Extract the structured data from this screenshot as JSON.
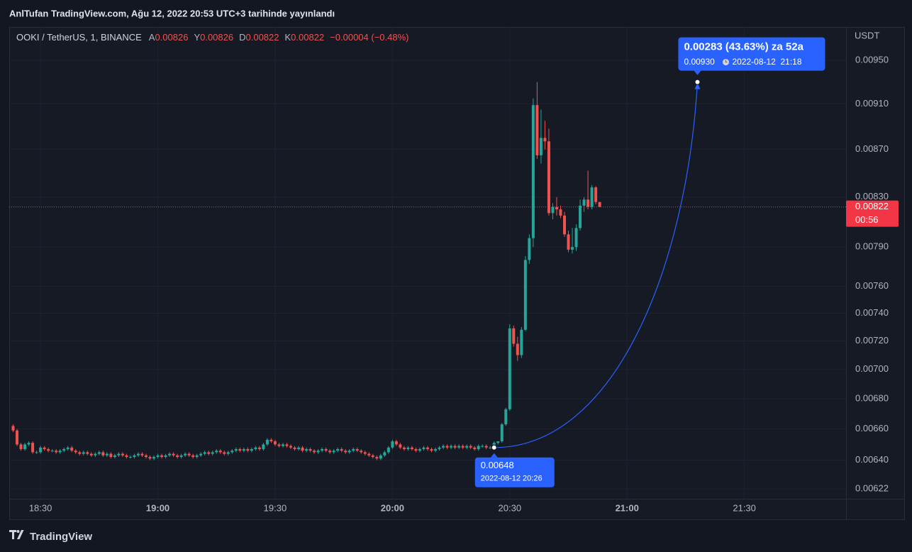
{
  "header": {
    "title": "AnlTufan TradingView.com, Ağu 12, 2022 20:53 UTC+3 tarihinde yayınlandı"
  },
  "chart_data": {
    "type": "candlestick",
    "symbol": "OOKI / TetherUS, 1, BINANCE",
    "ohlc_legend": [
      {
        "key": "A",
        "value": "0.00826"
      },
      {
        "key": "Y",
        "value": "0.00826"
      },
      {
        "key": "D",
        "value": "0.00822"
      },
      {
        "key": "K",
        "value": "0.00822"
      }
    ],
    "change": "−0.00004 (−0.48%)",
    "currency": "USDT",
    "up_color": "#26a69a",
    "down_color": "#ef5350",
    "log": true,
    "grid": true,
    "ylim": [
      0.00616,
      0.00982
    ],
    "yticks": [
      {
        "value": 0.0095,
        "label": "0.00950"
      },
      {
        "value": 0.0091,
        "label": "0.00910"
      },
      {
        "value": 0.0087,
        "label": "0.00870"
      },
      {
        "value": 0.0083,
        "label": "0.00830"
      },
      {
        "value": 0.0079,
        "label": "0.00790"
      },
      {
        "value": 0.0076,
        "label": "0.00760"
      },
      {
        "value": 0.0074,
        "label": "0.00740"
      },
      {
        "value": 0.0072,
        "label": "0.00720"
      },
      {
        "value": 0.007,
        "label": "0.00700"
      },
      {
        "value": 0.0068,
        "label": "0.00680"
      },
      {
        "value": 0.0066,
        "label": "0.00660"
      },
      {
        "value": 0.0064,
        "label": "0.00640"
      },
      {
        "value": 0.00622,
        "label": "0.00622"
      }
    ],
    "xlim": [
      "18:22",
      "21:56"
    ],
    "xticks": [
      "18:30",
      "19:00",
      "19:30",
      "20:00",
      "20:30",
      "21:00",
      "21:30"
    ],
    "x": [
      "18:23",
      "18:24",
      "18:25",
      "18:26",
      "18:27",
      "18:28",
      "18:29",
      "18:30",
      "18:31",
      "18:32",
      "18:33",
      "18:34",
      "18:35",
      "18:36",
      "18:37",
      "18:38",
      "18:39",
      "18:40",
      "18:41",
      "18:42",
      "18:43",
      "18:44",
      "18:45",
      "18:46",
      "18:47",
      "18:48",
      "18:49",
      "18:50",
      "18:51",
      "18:52",
      "18:53",
      "18:54",
      "18:55",
      "18:56",
      "18:57",
      "18:58",
      "18:59",
      "19:00",
      "19:01",
      "19:02",
      "19:03",
      "19:04",
      "19:05",
      "19:06",
      "19:07",
      "19:08",
      "19:09",
      "19:10",
      "19:11",
      "19:12",
      "19:13",
      "19:14",
      "19:15",
      "19:16",
      "19:17",
      "19:18",
      "19:19",
      "19:20",
      "19:21",
      "19:22",
      "19:23",
      "19:24",
      "19:25",
      "19:26",
      "19:27",
      "19:28",
      "19:29",
      "19:30",
      "19:31",
      "19:32",
      "19:33",
      "19:34",
      "19:35",
      "19:36",
      "19:37",
      "19:38",
      "19:39",
      "19:40",
      "19:41",
      "19:42",
      "19:43",
      "19:44",
      "19:45",
      "19:46",
      "19:47",
      "19:48",
      "19:49",
      "19:50",
      "19:51",
      "19:52",
      "19:53",
      "19:54",
      "19:55",
      "19:56",
      "19:57",
      "19:58",
      "19:59",
      "20:00",
      "20:01",
      "20:02",
      "20:03",
      "20:04",
      "20:05",
      "20:06",
      "20:07",
      "20:08",
      "20:09",
      "20:10",
      "20:11",
      "20:12",
      "20:13",
      "20:14",
      "20:15",
      "20:16",
      "20:17",
      "20:18",
      "20:19",
      "20:20",
      "20:21",
      "20:22",
      "20:23",
      "20:24",
      "20:25",
      "20:26",
      "20:27",
      "20:28",
      "20:29",
      "20:30",
      "20:31",
      "20:32",
      "20:33",
      "20:34",
      "20:35",
      "20:36",
      "20:37",
      "20:38",
      "20:39",
      "20:40",
      "20:41",
      "20:42",
      "20:43",
      "20:44",
      "20:45",
      "20:46",
      "20:47",
      "20:48",
      "20:49",
      "20:50",
      "20:51",
      "20:52",
      "20:53"
    ],
    "open": [
      0.00662,
      0.00659,
      0.0065,
      0.00647,
      0.0065,
      0.00651,
      0.00645,
      0.00645,
      0.00648,
      0.00647,
      0.00646,
      0.00646,
      0.00645,
      0.00646,
      0.00647,
      0.00648,
      0.00646,
      0.00645,
      0.00644,
      0.00645,
      0.00644,
      0.00643,
      0.00644,
      0.00645,
      0.00643,
      0.00644,
      0.00642,
      0.00643,
      0.00644,
      0.00643,
      0.00642,
      0.00642,
      0.00643,
      0.00644,
      0.00643,
      0.00642,
      0.00641,
      0.00642,
      0.00643,
      0.00642,
      0.00643,
      0.00644,
      0.00643,
      0.00642,
      0.00643,
      0.00644,
      0.00643,
      0.00642,
      0.00643,
      0.00644,
      0.00645,
      0.00644,
      0.00645,
      0.00646,
      0.00645,
      0.00644,
      0.00645,
      0.00646,
      0.00647,
      0.00646,
      0.00647,
      0.00646,
      0.00647,
      0.00648,
      0.00647,
      0.0065,
      0.00653,
      0.00652,
      0.0065,
      0.00649,
      0.0065,
      0.00649,
      0.00648,
      0.00647,
      0.00648,
      0.00646,
      0.00647,
      0.00646,
      0.00645,
      0.00646,
      0.00647,
      0.00646,
      0.00645,
      0.00646,
      0.00647,
      0.00646,
      0.00645,
      0.00646,
      0.00647,
      0.00646,
      0.00645,
      0.00644,
      0.00643,
      0.00642,
      0.00641,
      0.00643,
      0.00645,
      0.00648,
      0.00652,
      0.0065,
      0.00648,
      0.00647,
      0.00648,
      0.00647,
      0.00646,
      0.00647,
      0.00648,
      0.00647,
      0.00646,
      0.00647,
      0.00648,
      0.00649,
      0.00648,
      0.00649,
      0.00648,
      0.00649,
      0.00648,
      0.00649,
      0.00648,
      0.00647,
      0.00649,
      0.00649,
      0.00648,
      0.00648,
      0.00651,
      0.00652,
      0.00663,
      0.00673,
      0.00729,
      0.00718,
      0.0071,
      0.00728,
      0.0078,
      0.00797,
      0.00909,
      0.00865,
      0.0088,
      0.00877,
      0.00817,
      0.00822,
      0.0082,
      0.00815,
      0.008,
      0.00788,
      0.0079,
      0.00805,
      0.00823,
      0.00828,
      0.00822,
      0.00838,
      0.00826
    ],
    "high": [
      0.00663,
      0.0066,
      0.00651,
      0.00651,
      0.00652,
      0.00652,
      0.00646,
      0.00649,
      0.00649,
      0.00648,
      0.00647,
      0.00647,
      0.00647,
      0.00648,
      0.00649,
      0.00649,
      0.00647,
      0.00646,
      0.00646,
      0.00646,
      0.00645,
      0.00645,
      0.00646,
      0.00646,
      0.00645,
      0.00645,
      0.00644,
      0.00645,
      0.00645,
      0.00644,
      0.00643,
      0.00644,
      0.00645,
      0.00645,
      0.00644,
      0.00643,
      0.00643,
      0.00644,
      0.00644,
      0.00644,
      0.00645,
      0.00645,
      0.00644,
      0.00644,
      0.00645,
      0.00645,
      0.00644,
      0.00644,
      0.00645,
      0.00646,
      0.00646,
      0.00646,
      0.00647,
      0.00647,
      0.00646,
      0.00646,
      0.00647,
      0.00648,
      0.00648,
      0.00648,
      0.00648,
      0.00648,
      0.00649,
      0.00649,
      0.00651,
      0.00654,
      0.00654,
      0.00653,
      0.00651,
      0.00651,
      0.00651,
      0.0065,
      0.00649,
      0.00649,
      0.00649,
      0.00648,
      0.00648,
      0.00647,
      0.00647,
      0.00648,
      0.00648,
      0.00647,
      0.00647,
      0.00648,
      0.00648,
      0.00647,
      0.00647,
      0.00648,
      0.00648,
      0.00647,
      0.00646,
      0.00645,
      0.00644,
      0.00643,
      0.00644,
      0.00646,
      0.00649,
      0.00653,
      0.00653,
      0.00651,
      0.00649,
      0.00649,
      0.00649,
      0.00648,
      0.00648,
      0.00649,
      0.00649,
      0.00648,
      0.00648,
      0.00649,
      0.0065,
      0.0065,
      0.0065,
      0.0065,
      0.0065,
      0.0065,
      0.0065,
      0.0065,
      0.00649,
      0.0065,
      0.0065,
      0.0065,
      0.00649,
      0.00652,
      0.00652,
      0.00664,
      0.00674,
      0.00732,
      0.00731,
      0.00723,
      0.0073,
      0.00783,
      0.008,
      0.00915,
      0.0093,
      0.00905,
      0.00895,
      0.00888,
      0.00825,
      0.0083,
      0.00823,
      0.00818,
      0.00803,
      0.00805,
      0.00808,
      0.00828,
      0.0083,
      0.00852,
      0.0084,
      0.00839,
      0.00826
    ],
    "low": [
      0.00658,
      0.00649,
      0.00646,
      0.00646,
      0.00649,
      0.00644,
      0.00644,
      0.00644,
      0.00646,
      0.00645,
      0.00645,
      0.00644,
      0.00644,
      0.00645,
      0.00646,
      0.00645,
      0.00644,
      0.00643,
      0.00643,
      0.00643,
      0.00642,
      0.00642,
      0.00643,
      0.00642,
      0.00642,
      0.00641,
      0.00641,
      0.00642,
      0.00642,
      0.00641,
      0.00641,
      0.00641,
      0.00642,
      0.00642,
      0.00641,
      0.0064,
      0.0064,
      0.00641,
      0.00641,
      0.00641,
      0.00642,
      0.00642,
      0.00641,
      0.00641,
      0.00642,
      0.00642,
      0.00641,
      0.00641,
      0.00642,
      0.00643,
      0.00643,
      0.00643,
      0.00644,
      0.00644,
      0.00643,
      0.00643,
      0.00644,
      0.00645,
      0.00645,
      0.00645,
      0.00645,
      0.00645,
      0.00646,
      0.00646,
      0.00646,
      0.00649,
      0.00651,
      0.00649,
      0.00648,
      0.00648,
      0.00648,
      0.00647,
      0.00646,
      0.00646,
      0.00645,
      0.00645,
      0.00645,
      0.00644,
      0.00644,
      0.00645,
      0.00645,
      0.00644,
      0.00644,
      0.00645,
      0.00645,
      0.00644,
      0.00644,
      0.00645,
      0.00645,
      0.00644,
      0.00643,
      0.00642,
      0.00641,
      0.0064,
      0.0064,
      0.00642,
      0.00644,
      0.00647,
      0.00649,
      0.00647,
      0.00646,
      0.00646,
      0.00646,
      0.00645,
      0.00645,
      0.00646,
      0.00646,
      0.00645,
      0.00645,
      0.00646,
      0.00647,
      0.00647,
      0.00647,
      0.00647,
      0.00647,
      0.00647,
      0.00647,
      0.00647,
      0.00646,
      0.00646,
      0.00648,
      0.00647,
      0.00647,
      0.00647,
      0.0065,
      0.00651,
      0.00662,
      0.00672,
      0.00716,
      0.00706,
      0.00708,
      0.00727,
      0.00777,
      0.0079,
      0.00862,
      0.00858,
      0.0087,
      0.00815,
      0.00812,
      0.00815,
      0.00813,
      0.00798,
      0.00786,
      0.00785,
      0.00787,
      0.00803,
      0.00818,
      0.0082,
      0.0082,
      0.00824,
      0.00822
    ],
    "close": [
      0.00659,
      0.0065,
      0.00647,
      0.0065,
      0.00651,
      0.00645,
      0.00645,
      0.00648,
      0.00647,
      0.00646,
      0.00646,
      0.00645,
      0.00646,
      0.00647,
      0.00648,
      0.00646,
      0.00645,
      0.00644,
      0.00645,
      0.00644,
      0.00643,
      0.00644,
      0.00645,
      0.00643,
      0.00644,
      0.00642,
      0.00643,
      0.00644,
      0.00643,
      0.00642,
      0.00642,
      0.00643,
      0.00644,
      0.00643,
      0.00642,
      0.00641,
      0.00642,
      0.00643,
      0.00642,
      0.00643,
      0.00644,
      0.00643,
      0.00642,
      0.00643,
      0.00644,
      0.00643,
      0.00642,
      0.00643,
      0.00644,
      0.00645,
      0.00644,
      0.00645,
      0.00646,
      0.00645,
      0.00644,
      0.00645,
      0.00646,
      0.00647,
      0.00646,
      0.00647,
      0.00646,
      0.00647,
      0.00648,
      0.00647,
      0.0065,
      0.00653,
      0.00652,
      0.0065,
      0.00649,
      0.0065,
      0.00649,
      0.00648,
      0.00647,
      0.00648,
      0.00646,
      0.00647,
      0.00646,
      0.00645,
      0.00646,
      0.00647,
      0.00646,
      0.00645,
      0.00646,
      0.00647,
      0.00646,
      0.00645,
      0.00646,
      0.00647,
      0.00646,
      0.00645,
      0.00644,
      0.00643,
      0.00642,
      0.00641,
      0.00643,
      0.00645,
      0.00648,
      0.00652,
      0.0065,
      0.00648,
      0.00647,
      0.00648,
      0.00647,
      0.00646,
      0.00647,
      0.00648,
      0.00647,
      0.00646,
      0.00647,
      0.00648,
      0.00649,
      0.00648,
      0.00649,
      0.00648,
      0.00649,
      0.00648,
      0.00649,
      0.00648,
      0.00647,
      0.00649,
      0.00649,
      0.00648,
      0.00648,
      0.00651,
      0.00652,
      0.00663,
      0.00673,
      0.00729,
      0.00718,
      0.0071,
      0.00728,
      0.0078,
      0.00797,
      0.00909,
      0.00865,
      0.0088,
      0.00877,
      0.00817,
      0.00822,
      0.0082,
      0.00815,
      0.008,
      0.00788,
      0.0079,
      0.00805,
      0.00823,
      0.00828,
      0.00822,
      0.00838,
      0.00826,
      0.00822
    ],
    "last_price": 0.00822,
    "last_price_color": "#f23645",
    "countdown": "00:56",
    "measure": {
      "color": "#2962ff",
      "start_price": 0.00648,
      "start_time": "2022-08-12 20:26",
      "headline": "0.00283 (43.63%) za 52a",
      "end_price": {
        "value": 0.0093,
        "label": "0.00930"
      },
      "end_time": "2022-08-12  21:18"
    }
  },
  "footer": {
    "brand": "TradingView"
  }
}
